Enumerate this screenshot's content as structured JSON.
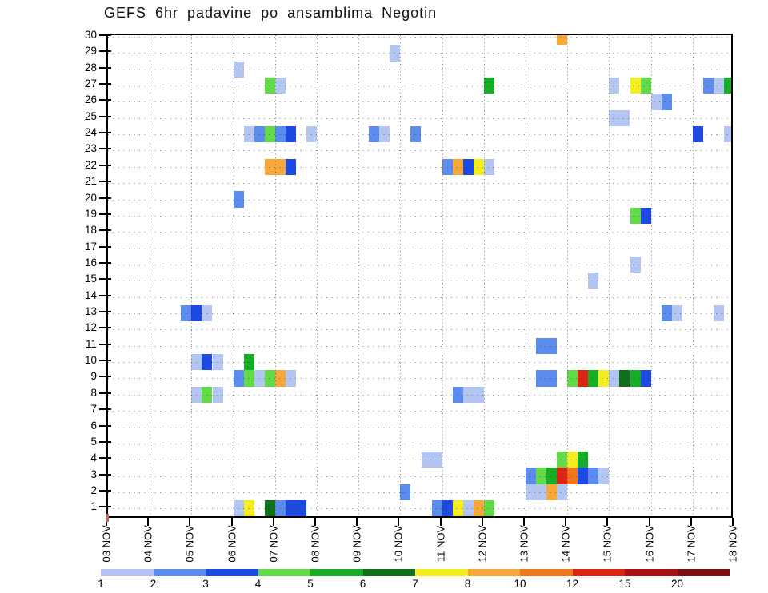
{
  "title": "GEFS 6hr padavine po ansamblima Negotin",
  "chart_data": {
    "type": "heatmap",
    "title": "GEFS 6hr padavine po ansamblima Negotin",
    "xlabel": "",
    "ylabel": "",
    "x_dates": [
      "03 NOV",
      "04 NOV",
      "05 NOV",
      "06 NOV",
      "07 NOV",
      "08 NOV",
      "09 NOV",
      "10 NOV",
      "11 NOV",
      "12 NOV",
      "13 NOV",
      "14 NOV",
      "15 NOV",
      "16 NOV",
      "17 NOV",
      "18 NOV"
    ],
    "periods_per_day": 4,
    "period_hours": 6,
    "y_members": [
      1,
      2,
      3,
      4,
      5,
      6,
      7,
      8,
      9,
      10,
      11,
      12,
      13,
      14,
      15,
      16,
      17,
      18,
      19,
      20,
      21,
      22,
      23,
      24,
      25,
      26,
      27,
      28,
      29,
      30
    ],
    "grid": "dotted",
    "palette": {
      "b1": {
        "color": "#b3c6f2",
        "range": "1-2"
      },
      "b2": {
        "color": "#5c8cee",
        "range": "2-3"
      },
      "b3": {
        "color": "#1e4ae4",
        "range": "3-4"
      },
      "g1": {
        "color": "#63da4a",
        "range": "4-5"
      },
      "g2": {
        "color": "#17ad27",
        "range": "5-6"
      },
      "g3": {
        "color": "#10701a",
        "range": "6-7"
      },
      "y": {
        "color": "#f4ee20",
        "range": "7-8"
      },
      "o1": {
        "color": "#f6a83b",
        "range": "8-10"
      },
      "o2": {
        "color": "#f1761b",
        "range": "10-12"
      },
      "r1": {
        "color": "#da2512",
        "range": "12-15"
      },
      "r2": {
        "color": "#aa1116",
        "range": "15-20"
      },
      "r3": {
        "color": "#7c0d12",
        "range": "20+"
      }
    },
    "colorbar": {
      "order": [
        "b1",
        "b2",
        "b3",
        "g1",
        "g2",
        "g3",
        "y",
        "o1",
        "o2",
        "r1",
        "r2",
        "r3"
      ],
      "labels": [
        "1",
        "2",
        "3",
        "4",
        "5",
        "6",
        "7",
        "8",
        "10",
        "12",
        "15",
        "20"
      ]
    },
    "cells": [
      [
        30,
        10,
        3,
        "o1"
      ],
      [
        29,
        6,
        3,
        "b1"
      ],
      [
        28,
        3,
        0,
        "b1"
      ],
      [
        27,
        3,
        3,
        "g1"
      ],
      [
        27,
        4,
        0,
        "b1"
      ],
      [
        27,
        9,
        0,
        "g2"
      ],
      [
        27,
        12,
        0,
        "b1"
      ],
      [
        27,
        12,
        2,
        "y"
      ],
      [
        27,
        12,
        3,
        "g1"
      ],
      [
        27,
        14,
        1,
        "b2"
      ],
      [
        27,
        14,
        2,
        "b1"
      ],
      [
        27,
        14,
        3,
        "g2"
      ],
      [
        26,
        13,
        0,
        "b1"
      ],
      [
        26,
        13,
        1,
        "b2"
      ],
      [
        25,
        12,
        0,
        "b1"
      ],
      [
        25,
        12,
        1,
        "b1"
      ],
      [
        24,
        3,
        1,
        "b1"
      ],
      [
        24,
        3,
        2,
        "b2"
      ],
      [
        24,
        3,
        3,
        "g1"
      ],
      [
        24,
        4,
        0,
        "b2"
      ],
      [
        24,
        4,
        1,
        "b3"
      ],
      [
        24,
        4,
        3,
        "b1"
      ],
      [
        24,
        6,
        1,
        "b2"
      ],
      [
        24,
        6,
        2,
        "b1"
      ],
      [
        24,
        7,
        1,
        "b2"
      ],
      [
        24,
        14,
        0,
        "b3"
      ],
      [
        24,
        14,
        3,
        "b1"
      ],
      [
        22,
        3,
        3,
        "o1"
      ],
      [
        22,
        4,
        0,
        "o1"
      ],
      [
        22,
        4,
        1,
        "b3"
      ],
      [
        22,
        8,
        0,
        "b2"
      ],
      [
        22,
        8,
        1,
        "o1"
      ],
      [
        22,
        8,
        2,
        "b3"
      ],
      [
        22,
        8,
        3,
        "y"
      ],
      [
        22,
        9,
        0,
        "b1"
      ],
      [
        20,
        3,
        0,
        "b2"
      ],
      [
        19,
        12,
        2,
        "g1"
      ],
      [
        19,
        12,
        3,
        "b3"
      ],
      [
        16,
        12,
        2,
        "b1"
      ],
      [
        15,
        11,
        2,
        "b1"
      ],
      [
        13,
        1,
        3,
        "b2"
      ],
      [
        13,
        2,
        0,
        "b3"
      ],
      [
        13,
        2,
        1,
        "b1"
      ],
      [
        13,
        13,
        1,
        "b2"
      ],
      [
        13,
        13,
        2,
        "b1"
      ],
      [
        13,
        14,
        2,
        "b1"
      ],
      [
        11,
        10,
        1,
        "b2"
      ],
      [
        11,
        10,
        2,
        "b2"
      ],
      [
        10,
        2,
        0,
        "b1"
      ],
      [
        10,
        2,
        1,
        "b3"
      ],
      [
        10,
        2,
        2,
        "b1"
      ],
      [
        10,
        3,
        1,
        "g2"
      ],
      [
        9,
        3,
        0,
        "b2"
      ],
      [
        9,
        3,
        1,
        "g1"
      ],
      [
        9,
        3,
        2,
        "b1"
      ],
      [
        9,
        3,
        3,
        "g1"
      ],
      [
        9,
        4,
        0,
        "o1"
      ],
      [
        9,
        4,
        1,
        "b1"
      ],
      [
        9,
        10,
        1,
        "b2"
      ],
      [
        9,
        10,
        2,
        "b2"
      ],
      [
        9,
        11,
        0,
        "g1"
      ],
      [
        9,
        11,
        1,
        "r1"
      ],
      [
        9,
        11,
        2,
        "g2"
      ],
      [
        9,
        11,
        3,
        "y"
      ],
      [
        9,
        12,
        0,
        "b1"
      ],
      [
        9,
        12,
        1,
        "g3"
      ],
      [
        9,
        12,
        2,
        "g2"
      ],
      [
        9,
        12,
        3,
        "b3"
      ],
      [
        8,
        2,
        0,
        "b1"
      ],
      [
        8,
        2,
        1,
        "g1"
      ],
      [
        8,
        2,
        2,
        "b1"
      ],
      [
        8,
        8,
        1,
        "b2"
      ],
      [
        8,
        8,
        2,
        "b1"
      ],
      [
        8,
        8,
        3,
        "b1"
      ],
      [
        4,
        7,
        2,
        "b1"
      ],
      [
        4,
        7,
        3,
        "b1"
      ],
      [
        4,
        10,
        3,
        "g1"
      ],
      [
        4,
        11,
        0,
        "y"
      ],
      [
        4,
        11,
        1,
        "g2"
      ],
      [
        3,
        10,
        0,
        "b2"
      ],
      [
        3,
        10,
        1,
        "g1"
      ],
      [
        3,
        10,
        2,
        "g2"
      ],
      [
        3,
        10,
        3,
        "r1"
      ],
      [
        3,
        11,
        0,
        "o2"
      ],
      [
        3,
        11,
        1,
        "b3"
      ],
      [
        3,
        11,
        2,
        "b2"
      ],
      [
        3,
        11,
        3,
        "b1"
      ],
      [
        2,
        7,
        0,
        "b2"
      ],
      [
        2,
        10,
        0,
        "b1"
      ],
      [
        2,
        10,
        1,
        "b1"
      ],
      [
        2,
        10,
        2,
        "o1"
      ],
      [
        2,
        10,
        3,
        "b1"
      ],
      [
        1,
        3,
        0,
        "b1"
      ],
      [
        1,
        3,
        1,
        "y"
      ],
      [
        1,
        3,
        3,
        "g3"
      ],
      [
        1,
        4,
        0,
        "b2"
      ],
      [
        1,
        4,
        1,
        "b3"
      ],
      [
        1,
        4,
        2,
        "b3"
      ],
      [
        1,
        7,
        3,
        "b2"
      ],
      [
        1,
        8,
        0,
        "b3"
      ],
      [
        1,
        8,
        1,
        "y"
      ],
      [
        1,
        8,
        2,
        "b1"
      ],
      [
        1,
        8,
        3,
        "o1"
      ],
      [
        1,
        9,
        0,
        "g1"
      ]
    ]
  }
}
